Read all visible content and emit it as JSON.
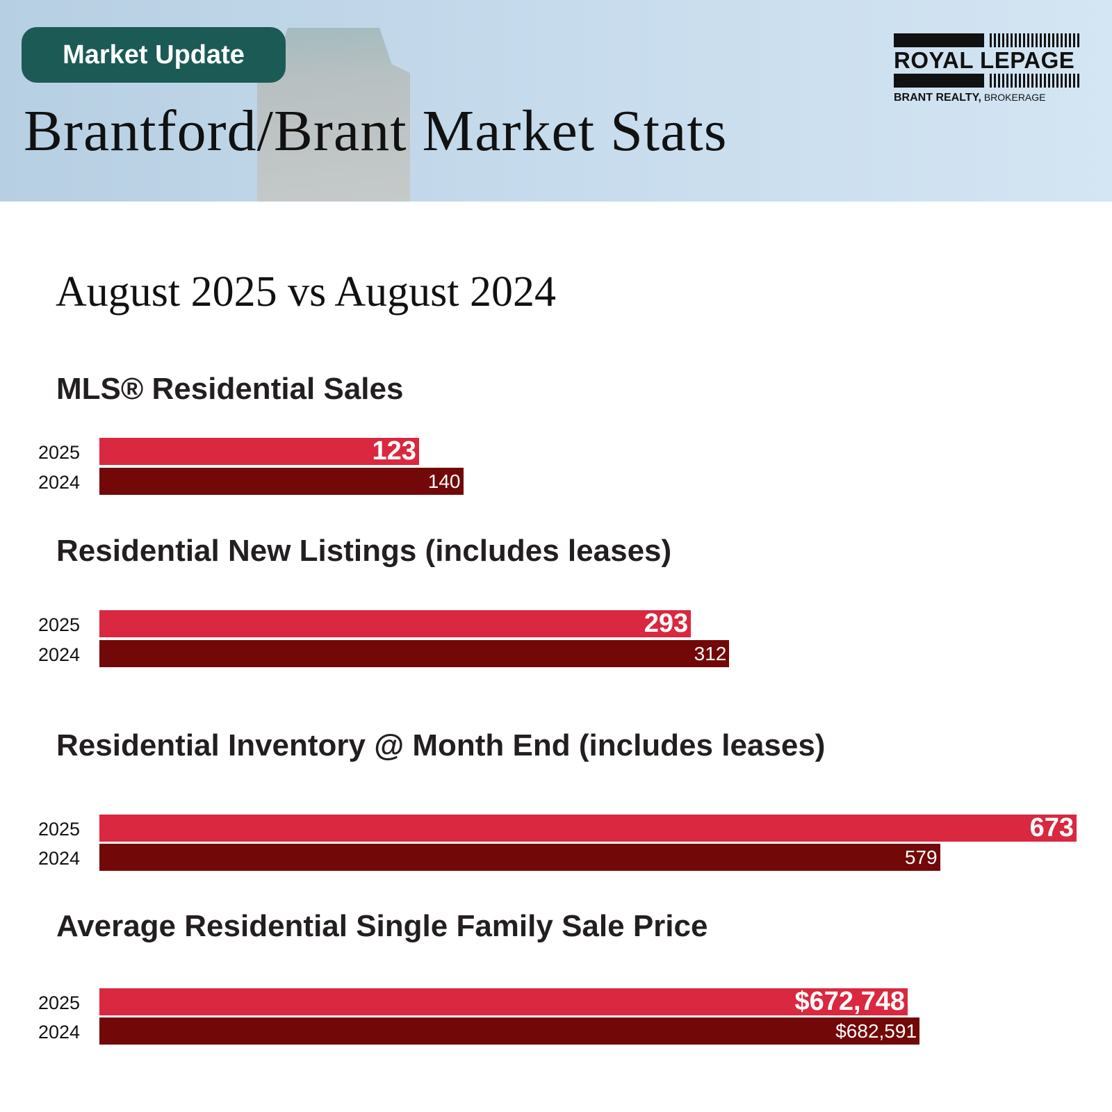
{
  "header": {
    "badge": "Market Update",
    "title": "Brantford/Brant Market Stats",
    "logo": {
      "brand": "ROYAL LEPAGE",
      "office": "BRANT REALTY,",
      "suffix": "BROKERAGE"
    }
  },
  "subtitle": "August 2025 vs August 2024",
  "colors": {
    "y2025": "#d9283f",
    "y2024": "#730808",
    "badge": "#1c5a55"
  },
  "chart_data": [
    {
      "type": "bar",
      "orientation": "horizontal",
      "title": "MLS® Residential Sales",
      "categories": [
        "2025",
        "2024"
      ],
      "values": [
        123,
        140
      ],
      "labels": [
        "123",
        "140"
      ],
      "xlim": [
        0,
        376
      ]
    },
    {
      "type": "bar",
      "orientation": "horizontal",
      "title": "Residential New Listings (includes leases)",
      "categories": [
        "2025",
        "2024"
      ],
      "values": [
        293,
        312
      ],
      "labels": [
        "293",
        "312"
      ],
      "xlim": [
        0,
        484
      ]
    },
    {
      "type": "bar",
      "orientation": "horizontal",
      "title": "Residential Inventory @ Month End (includes leases)",
      "categories": [
        "2025",
        "2024"
      ],
      "values": [
        673,
        579
      ],
      "labels": [
        "673",
        "579"
      ],
      "xlim": [
        0,
        673
      ]
    },
    {
      "type": "bar",
      "orientation": "horizontal",
      "title": "Average Residential Single Family Sale Price",
      "categories": [
        "2025",
        "2024"
      ],
      "values": [
        672748,
        682591
      ],
      "labels": [
        "$672,748",
        "$682,591"
      ],
      "xlim": [
        0,
        813300
      ]
    }
  ]
}
